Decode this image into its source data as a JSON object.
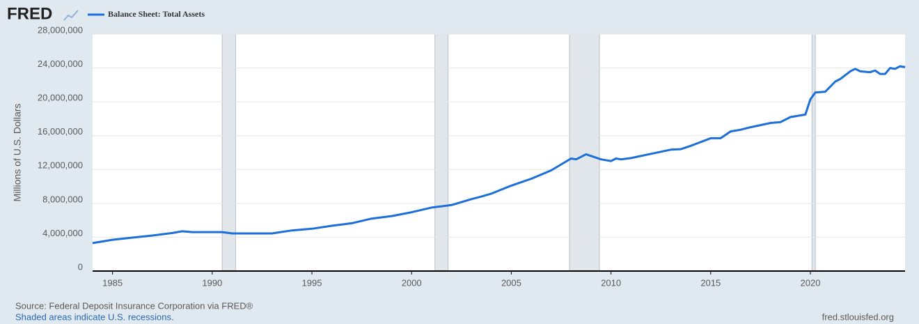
{
  "chart_data": {
    "type": "line",
    "logo": "FRED",
    "y_label": "Millions of U.S. Dollars",
    "source": "Source: Federal Deposit Insurance Corporation via FRED®",
    "note": "Shaded areas indicate U.S. recessions.",
    "credit": "fred.stlouisfed.org",
    "x": [
      1984,
      1985,
      1986,
      1987,
      1988,
      1988.5,
      1989,
      1990,
      1990.5,
      1991,
      1992,
      1993,
      1994,
      1995,
      1996,
      1997,
      1998,
      1999,
      2000,
      2001,
      2002,
      2003,
      2003.5,
      2004,
      2005,
      2006,
      2007,
      2008,
      2008.25,
      2008.75,
      2009.5,
      2010,
      2010.25,
      2010.5,
      2011,
      2012,
      2013,
      2013.5,
      2014,
      2015,
      2015.5,
      2016,
      2016.5,
      2017,
      2018,
      2018.5,
      2019,
      2019.75,
      2020,
      2020.25,
      2020.75,
      2021.25,
      2021.5,
      2022,
      2022.25,
      2022.5,
      2023,
      2023.25,
      2023.5,
      2023.75,
      2024,
      2024.25,
      2024.5,
      2024.75
    ],
    "series": [
      {
        "name": "Balance Sheet: Total Assets",
        "color": "#1c6ed8",
        "values": [
          3300000,
          3700000,
          3950000,
          4200000,
          4500000,
          4700000,
          4600000,
          4600000,
          4600000,
          4450000,
          4450000,
          4450000,
          4800000,
          5000000,
          5350000,
          5650000,
          6200000,
          6500000,
          6950000,
          7500000,
          7800000,
          8500000,
          8800000,
          9150000,
          10100000,
          10900000,
          11900000,
          13300000,
          13200000,
          13800000,
          13200000,
          13000000,
          13300000,
          13200000,
          13350000,
          13850000,
          14350000,
          14400000,
          14800000,
          15700000,
          15700000,
          16500000,
          16700000,
          17000000,
          17500000,
          17600000,
          18200000,
          18500000,
          20300000,
          21100000,
          21200000,
          22400000,
          22700000,
          23600000,
          23900000,
          23600000,
          23500000,
          23700000,
          23300000,
          23300000,
          24000000,
          23900000,
          24200000,
          24100000
        ]
      }
    ],
    "recessions": [
      [
        1990.5,
        1991.17
      ],
      [
        2001.17,
        2001.83
      ],
      [
        2007.92,
        2009.42
      ],
      [
        2020.08,
        2020.25
      ]
    ],
    "xlim": [
      1984,
      2024.75
    ],
    "xticks": [
      1985,
      1990,
      1995,
      2000,
      2005,
      2010,
      2015,
      2020
    ],
    "ylim": [
      0,
      28000000
    ],
    "yticks": [
      0,
      {
        "value": 4000000,
        "label": "4,000,000"
      },
      {
        "value": 8000000,
        "label": "8,000,000"
      },
      {
        "value": 12000000,
        "label": "12,000,000"
      },
      {
        "value": 16000000,
        "label": "16,000,000"
      },
      {
        "value": 20000000,
        "label": "20,000,000"
      },
      {
        "value": 24000000,
        "label": "24,000,000"
      },
      {
        "value": 28000000,
        "label": "28,000,000"
      }
    ],
    "grid": true
  }
}
